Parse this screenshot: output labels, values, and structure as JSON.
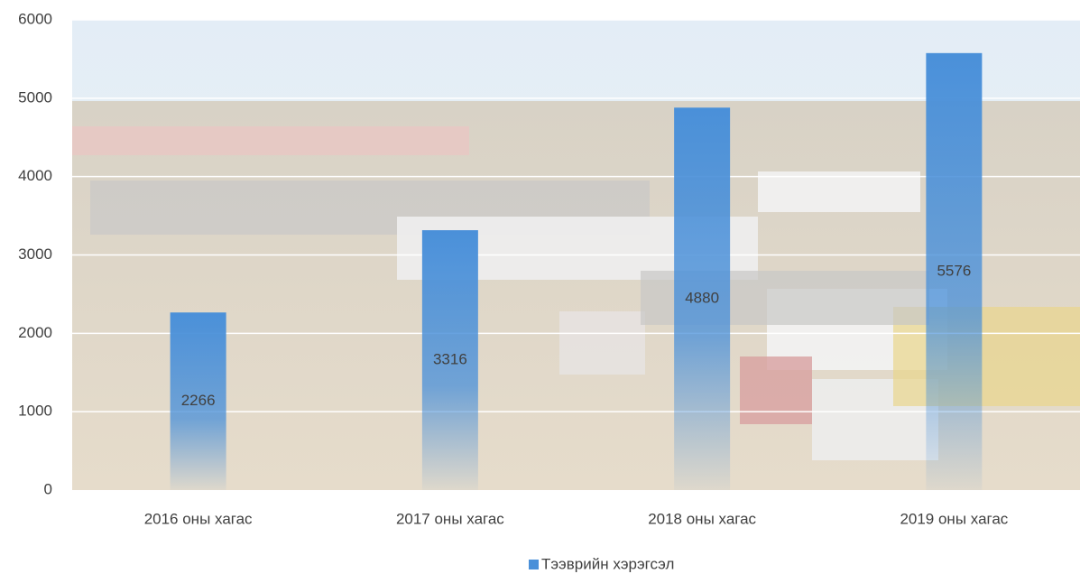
{
  "chart_data": {
    "type": "bar",
    "categories": [
      "2016 оны хагас",
      "2017 оны хагас",
      "2018 оны хагас",
      "2019 оны хагас"
    ],
    "series": [
      {
        "name": "Тээврийн хэрэгсэл",
        "color": "#4a90d9",
        "values": [
          2266,
          3316,
          4880,
          5576
        ]
      }
    ],
    "ylim": [
      0,
      6000
    ],
    "yticks": [
      0,
      1000,
      2000,
      3000,
      4000,
      5000,
      6000
    ],
    "grid": true,
    "legend": "bottom",
    "data_labels": true
  }
}
